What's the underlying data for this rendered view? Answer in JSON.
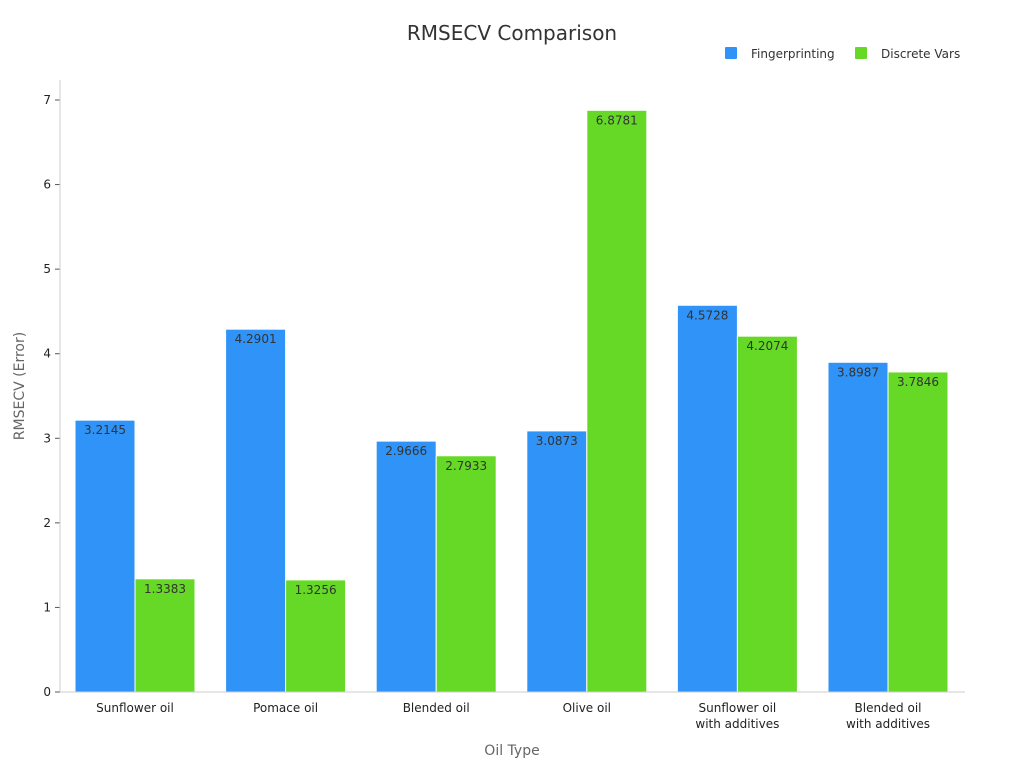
{
  "chart_data": {
    "type": "bar",
    "title": "RMSECV Comparison",
    "xlabel": "Oil Type",
    "ylabel": "RMSECV (Error)",
    "ylim": [
      0,
      7
    ],
    "yticks": [
      0,
      1,
      2,
      3,
      4,
      5,
      6,
      7
    ],
    "ytick_labels": [
      "0",
      "1",
      "2",
      "3",
      "4",
      "5",
      "6",
      "7"
    ],
    "grid": false,
    "legend_position": "top-right",
    "categories": [
      [
        "Sunflower oil"
      ],
      [
        "Pomace oil"
      ],
      [
        "Blended oil"
      ],
      [
        "Olive oil"
      ],
      [
        "Sunflower oil",
        "with additives"
      ],
      [
        "Blended oil",
        "with additives"
      ]
    ],
    "series": [
      {
        "name": "Fingerprinting",
        "color": "#2f93f7",
        "values": [
          3.2145,
          4.2901,
          2.9666,
          3.0873,
          4.5728,
          3.8987
        ],
        "labels": [
          "3.2145",
          "4.2901",
          "2.9666",
          "3.0873",
          "4.5728",
          "3.8987"
        ]
      },
      {
        "name": "Discrete Vars",
        "color": "#66d926",
        "values": [
          1.3383,
          1.3256,
          2.7933,
          6.8781,
          4.2074,
          3.7846
        ],
        "labels": [
          "1.3383",
          "1.3256",
          "2.7933",
          "6.8781",
          "4.2074",
          "3.7846"
        ]
      }
    ]
  }
}
